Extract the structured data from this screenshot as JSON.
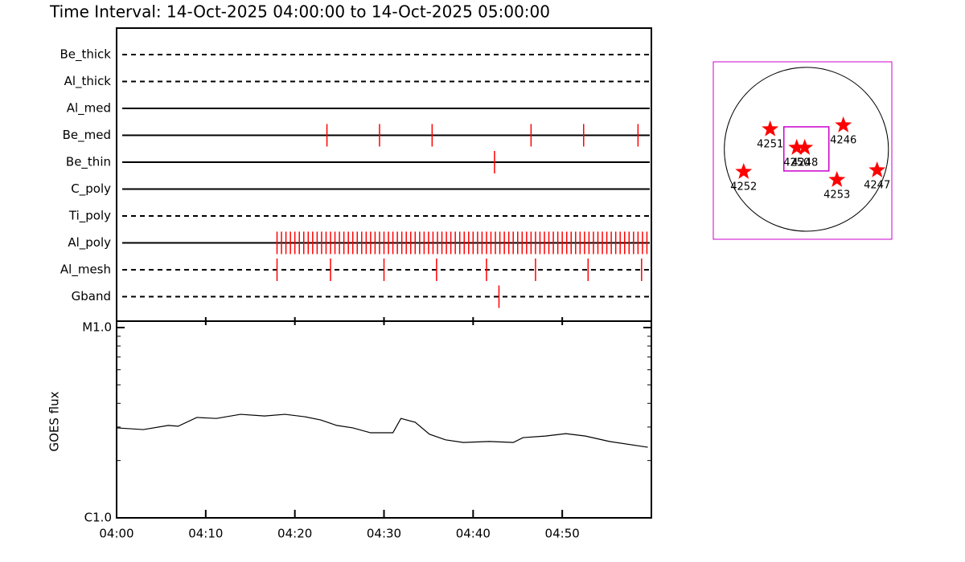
{
  "title": "Time Interval: 14-Oct-2025 04:00:00 to 14-Oct-2025 05:00:00",
  "timeline": {
    "event_color": "#ff0000",
    "rows": [
      {
        "name": "Be_thick",
        "line": "dashed",
        "events": []
      },
      {
        "name": "Al_thick",
        "line": "dashed",
        "events": []
      },
      {
        "name": "Al_med",
        "line": "solid",
        "events": []
      },
      {
        "name": "Be_med",
        "line": "solid",
        "events": [
          23.6,
          29.5,
          35.4,
          46.5,
          52.4,
          58.5
        ]
      },
      {
        "name": "Be_thin",
        "line": "solid",
        "events": [
          42.4
        ]
      },
      {
        "name": "C_poly",
        "line": "solid",
        "events": []
      },
      {
        "name": "Ti_poly",
        "line": "dashed",
        "events": []
      },
      {
        "name": "Al_poly",
        "line": "solid",
        "events": [
          18.0,
          18.5,
          19.0,
          19.5,
          20.0,
          20.5,
          21.0,
          21.5,
          22.0,
          22.5,
          23.0,
          23.5,
          24.0,
          24.5,
          25.0,
          25.5,
          26.0,
          26.5,
          27.0,
          27.5,
          28.0,
          28.5,
          29.0,
          29.5,
          30.0,
          30.5,
          31.0,
          31.5,
          32.0,
          32.5,
          33.0,
          33.5,
          34.0,
          34.5,
          35.0,
          35.5,
          36.0,
          36.5,
          37.0,
          37.5,
          38.0,
          38.5,
          39.0,
          39.5,
          40.0,
          40.5,
          41.0,
          41.5,
          42.0,
          42.5,
          43.0,
          43.5,
          44.0,
          44.5,
          45.0,
          45.5,
          46.0,
          46.5,
          47.0,
          47.5,
          48.0,
          48.5,
          49.0,
          49.5,
          50.0,
          50.5,
          51.0,
          51.5,
          52.0,
          52.5,
          53.0,
          53.5,
          54.0,
          54.5,
          55.0,
          55.5,
          56.0,
          56.5,
          57.0,
          57.5,
          58.0,
          58.5,
          59.0,
          59.5
        ]
      },
      {
        "name": "Al_mesh",
        "line": "dashed",
        "events": [
          18.0,
          24.0,
          30.0,
          35.9,
          41.5,
          47.0,
          52.9,
          58.9
        ]
      },
      {
        "name": "Gband",
        "line": "dashed",
        "events": [
          42.9
        ]
      }
    ]
  },
  "chart_data": {
    "type": "line",
    "ylabel": "GOES flux",
    "color": "#000000",
    "yscale": "log",
    "x": [
      0,
      3.0,
      5.8,
      6.9,
      9.0,
      11.2,
      13.9,
      16.6,
      18.9,
      21.1,
      22.9,
      24.7,
      26.5,
      28.5,
      31.0,
      31.9,
      33.5,
      35.1,
      36.9,
      38.9,
      41.8,
      44.5,
      45.6,
      48.1,
      50.4,
      52.6,
      55.3,
      59.6
    ],
    "values": [
      2.97e-06,
      2.91e-06,
      3.06e-06,
      3.03e-06,
      3.37e-06,
      3.33e-06,
      3.5e-06,
      3.43e-06,
      3.5e-06,
      3.4e-06,
      3.27e-06,
      3.06e-06,
      2.97e-06,
      2.8e-06,
      2.8e-06,
      3.33e-06,
      3.18e-06,
      2.75e-06,
      2.57e-06,
      2.49e-06,
      2.52e-06,
      2.49e-06,
      2.64e-06,
      2.69e-06,
      2.77e-06,
      2.69e-06,
      2.52e-06,
      2.35e-06
    ],
    "xlim": [
      0,
      60
    ],
    "xticks": [
      {
        "value": 0,
        "label": "04:00"
      },
      {
        "value": 10,
        "label": "04:10"
      },
      {
        "value": 20,
        "label": "04:20"
      },
      {
        "value": 30,
        "label": "04:30"
      },
      {
        "value": 40,
        "label": "04:40"
      },
      {
        "value": 50,
        "label": "04:50"
      }
    ],
    "ylim": [
      1e-06,
      1e-05
    ],
    "yticks": [
      {
        "value": 1e-06,
        "label": "C1.0"
      },
      {
        "value": 1e-05,
        "label": "M1.0"
      }
    ],
    "yminorticks": [
      2e-06,
      3e-06,
      4e-06,
      5e-06,
      6e-06,
      7e-06,
      8e-06,
      9e-06
    ]
  },
  "map": {
    "xlim": [
      -1100,
      1010
    ],
    "ylim": [
      -1064,
      1035
    ],
    "radius": 970,
    "box_color": "#cc00cc",
    "star_color": "#ff0000",
    "fov": [
      -266,
      266,
      -256,
      266
    ],
    "regions": [
      {
        "label": "4251",
        "x": -428,
        "y": 238
      },
      {
        "label": "4246",
        "x": 437,
        "y": 285
      },
      {
        "label": "4250",
        "x": -114,
        "y": 19
      },
      {
        "label": "4248",
        "x": -19,
        "y": 19
      },
      {
        "label": "4252",
        "x": -741,
        "y": -266
      },
      {
        "label": "4253",
        "x": 361,
        "y": -361
      },
      {
        "label": "4247",
        "x": 836,
        "y": -247
      }
    ]
  }
}
